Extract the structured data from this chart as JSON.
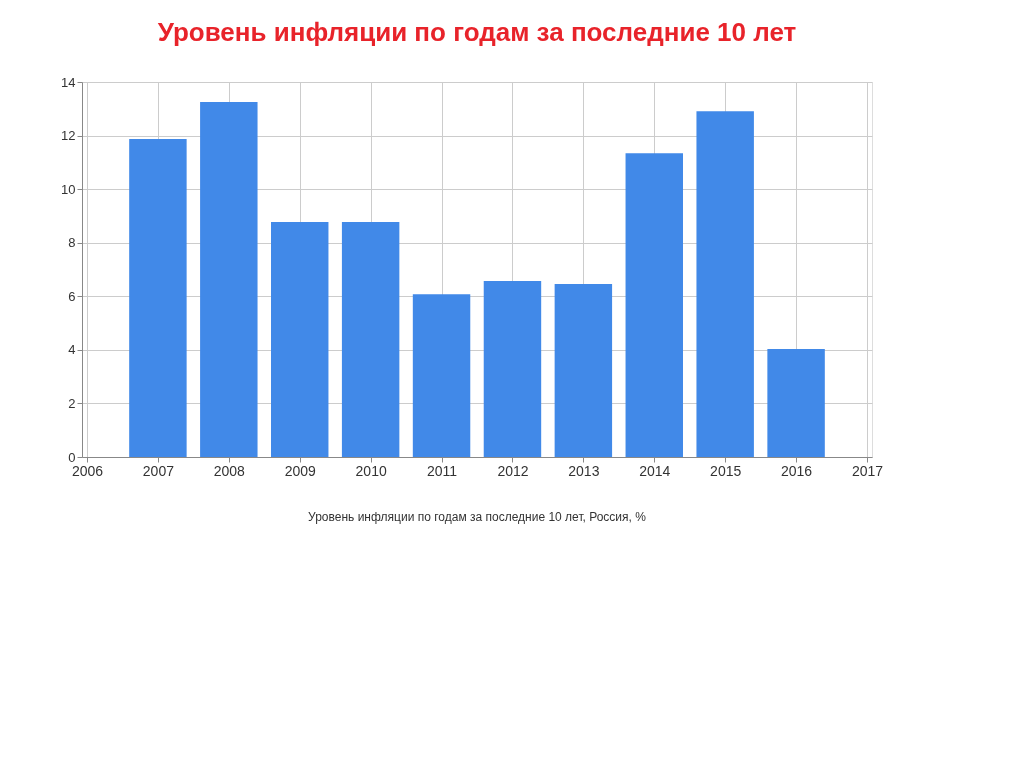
{
  "chart_data": {
    "type": "bar",
    "title": "Уровень инфляции по годам за последние 10 лет",
    "x": [
      2007,
      2008,
      2009,
      2010,
      2011,
      2012,
      2013,
      2014,
      2015,
      2016
    ],
    "values": [
      11.87,
      13.25,
      8.77,
      8.77,
      6.08,
      6.57,
      6.46,
      11.34,
      12.91,
      4.03
    ],
    "color": "#4189e8",
    "xlim": [
      2006,
      2017
    ],
    "xticks": [
      2006,
      2007,
      2008,
      2009,
      2010,
      2011,
      2012,
      2013,
      2014,
      2015,
      2016,
      2017
    ],
    "ylim": [
      0,
      14
    ],
    "yticks": [
      0,
      2,
      4,
      6,
      8,
      10,
      12,
      14
    ],
    "grid": true,
    "annotations": [
      "Уровень инфляции по годам за последние 10 лет, Россия, %"
    ]
  }
}
